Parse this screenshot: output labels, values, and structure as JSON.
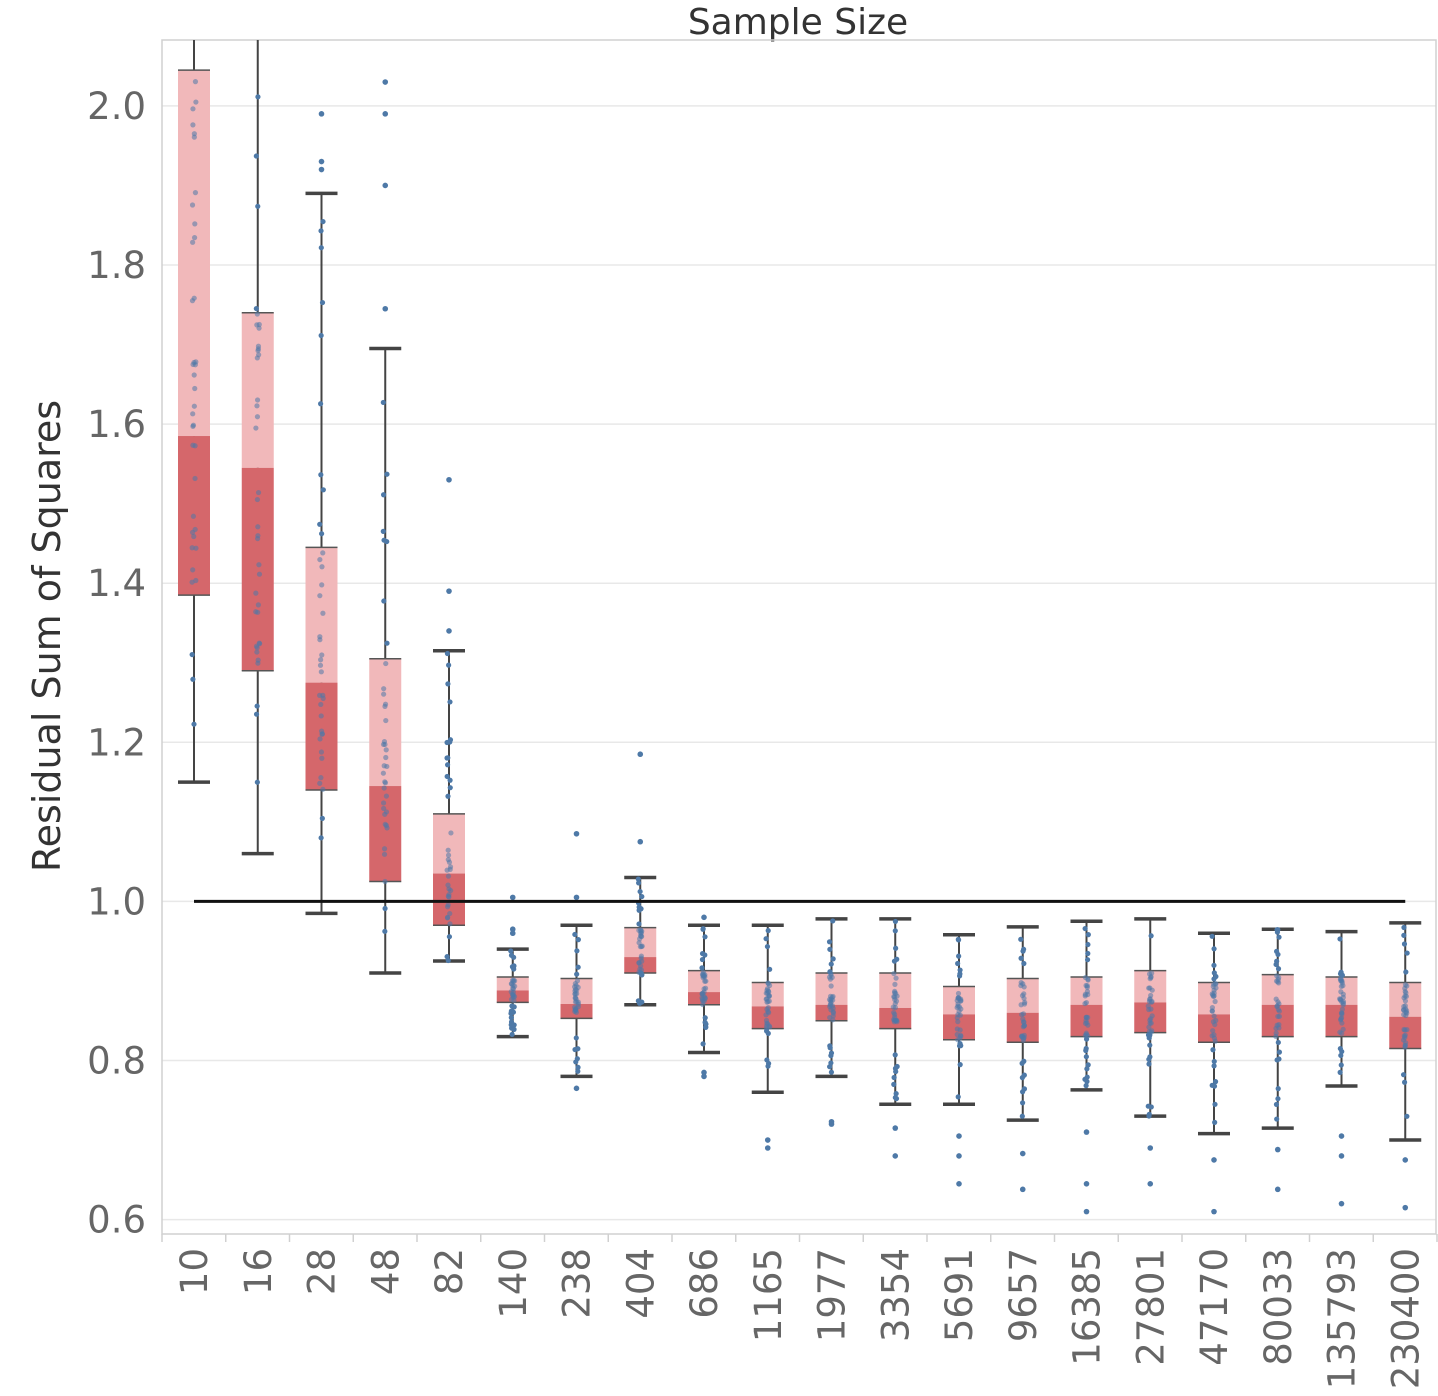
{
  "chart_data": {
    "type": "box",
    "title": "Sample Size",
    "xlabel": "",
    "ylabel": "Residual Sum of Squares",
    "ylim": [
      0.58,
      2.1
    ],
    "yticks": [
      "0.6",
      "0.8",
      "1.0",
      "1.2",
      "1.4",
      "1.6",
      "1.8",
      "2.0"
    ],
    "reference_line": 1.0,
    "colors": {
      "upper_box": "#f1b8ba",
      "lower_box": "#d5676b",
      "points": "#4e79a7",
      "whisker": "#444444",
      "reference": "#111111"
    },
    "categories": [
      "10",
      "16",
      "28",
      "48",
      "82",
      "140",
      "238",
      "404",
      "686",
      "1165",
      "1977",
      "3354",
      "5691",
      "9657",
      "16385",
      "27801",
      "47170",
      "80033",
      "135793",
      "230400"
    ],
    "boxes": [
      {
        "low": 1.15,
        "q1": 1.385,
        "median": 1.585,
        "q3": 2.045,
        "high": 2.1,
        "outliers": []
      },
      {
        "low": 1.06,
        "q1": 1.29,
        "median": 1.545,
        "q3": 1.74,
        "high": 2.1,
        "outliers": []
      },
      {
        "low": 0.985,
        "q1": 1.14,
        "median": 1.275,
        "q3": 1.445,
        "high": 1.89,
        "outliers": [
          1.92,
          1.93,
          1.99
        ]
      },
      {
        "low": 0.91,
        "q1": 1.025,
        "median": 1.145,
        "q3": 1.305,
        "high": 1.695,
        "outliers": [
          1.745,
          1.9,
          1.99,
          2.03
        ]
      },
      {
        "low": 0.925,
        "q1": 0.97,
        "median": 1.035,
        "q3": 1.11,
        "high": 1.315,
        "outliers": [
          1.34,
          1.39,
          1.53
        ]
      },
      {
        "low": 0.83,
        "q1": 0.873,
        "median": 0.888,
        "q3": 0.905,
        "high": 0.94,
        "outliers": [
          0.96,
          0.965,
          1.005
        ]
      },
      {
        "low": 0.78,
        "q1": 0.853,
        "median": 0.871,
        "q3": 0.903,
        "high": 0.97,
        "outliers": [
          0.765,
          1.005,
          1.085
        ]
      },
      {
        "low": 0.87,
        "q1": 0.91,
        "median": 0.93,
        "q3": 0.967,
        "high": 1.03,
        "outliers": [
          1.075,
          1.185
        ]
      },
      {
        "low": 0.81,
        "q1": 0.87,
        "median": 0.886,
        "q3": 0.913,
        "high": 0.97,
        "outliers": [
          0.78,
          0.785,
          0.98
        ]
      },
      {
        "low": 0.76,
        "q1": 0.84,
        "median": 0.868,
        "q3": 0.898,
        "high": 0.97,
        "outliers": [
          0.69,
          0.7
        ]
      },
      {
        "low": 0.78,
        "q1": 0.85,
        "median": 0.87,
        "q3": 0.91,
        "high": 0.978,
        "outliers": [
          0.72,
          0.723
        ]
      },
      {
        "low": 0.745,
        "q1": 0.84,
        "median": 0.866,
        "q3": 0.91,
        "high": 0.978,
        "outliers": [
          0.68,
          0.715
        ]
      },
      {
        "low": 0.745,
        "q1": 0.826,
        "median": 0.858,
        "q3": 0.893,
        "high": 0.958,
        "outliers": [
          0.645,
          0.68,
          0.705
        ]
      },
      {
        "low": 0.725,
        "q1": 0.823,
        "median": 0.86,
        "q3": 0.903,
        "high": 0.968,
        "outliers": [
          0.638,
          0.683
        ]
      },
      {
        "low": 0.763,
        "q1": 0.83,
        "median": 0.87,
        "q3": 0.905,
        "high": 0.975,
        "outliers": [
          0.61,
          0.645,
          0.71
        ]
      },
      {
        "low": 0.73,
        "q1": 0.835,
        "median": 0.873,
        "q3": 0.913,
        "high": 0.978,
        "outliers": [
          0.645,
          0.69
        ]
      },
      {
        "low": 0.708,
        "q1": 0.823,
        "median": 0.858,
        "q3": 0.898,
        "high": 0.96,
        "outliers": [
          0.61,
          0.675
        ]
      },
      {
        "low": 0.715,
        "q1": 0.83,
        "median": 0.87,
        "q3": 0.908,
        "high": 0.965,
        "outliers": [
          0.638,
          0.688
        ]
      },
      {
        "low": 0.768,
        "q1": 0.83,
        "median": 0.87,
        "q3": 0.905,
        "high": 0.962,
        "outliers": [
          0.62,
          0.68,
          0.705
        ]
      },
      {
        "low": 0.7,
        "q1": 0.815,
        "median": 0.855,
        "q3": 0.898,
        "high": 0.973,
        "outliers": [
          0.615,
          0.675
        ]
      }
    ]
  }
}
